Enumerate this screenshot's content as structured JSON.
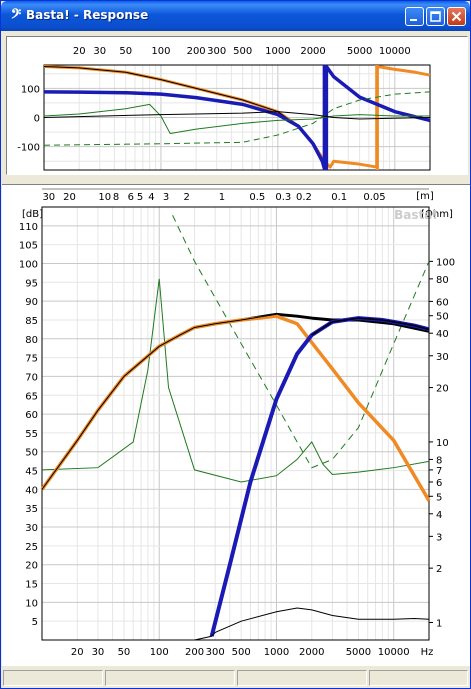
{
  "window": {
    "title": "Basta! - Response",
    "icon": "bass-clef-icon",
    "controls": [
      "minimize",
      "maximize",
      "close"
    ]
  },
  "phase_panel": {
    "freq_ticks": [
      "20",
      "30",
      "50",
      "100",
      "200",
      "300",
      "500",
      "1000",
      "2000",
      "5000",
      "10000"
    ],
    "y_ticks": [
      "100",
      "0",
      "-100"
    ]
  },
  "response_panel": {
    "top_axis_ticks": [
      "30",
      "20",
      "10",
      "8",
      "6",
      "5",
      "4",
      "3",
      "2",
      "1",
      "0.5",
      "0.3",
      "0.2",
      "0.1",
      "0.05"
    ],
    "top_axis_unit": "[m]",
    "left_unit": "[dB]",
    "right_unit": "[Ohm]",
    "watermark": "Basta!",
    "db_ticks": [
      "110",
      "105",
      "100",
      "95",
      "90",
      "85",
      "80",
      "75",
      "70",
      "65",
      "60",
      "55",
      "50",
      "45",
      "40",
      "35",
      "30",
      "25",
      "20",
      "15",
      "10",
      "5"
    ],
    "ohm_ticks": [
      "100",
      "80",
      "60",
      "50",
      "40",
      "30",
      "20",
      "10",
      "8",
      "7",
      "6",
      "5",
      "4",
      "3",
      "2",
      "1"
    ],
    "freq_ticks": [
      "20",
      "30",
      "50",
      "100",
      "200",
      "300",
      "500",
      "1000",
      "2000",
      "5000",
      "10000"
    ],
    "freq_unit": "Hz"
  },
  "colors": {
    "sum": "#000000",
    "woofer": "#F08A24",
    "tweeter": "#1A1AB4",
    "impedance": "#1F7A1F",
    "grid_major": "#C8C8C8",
    "grid_minor": "#E6E6E6"
  },
  "chart_data": [
    {
      "type": "line",
      "x_scale": "log",
      "xlim": [
        10,
        20000
      ],
      "ylim": [
        -180,
        180
      ],
      "series": [
        {
          "color": "woofer",
          "x": [
            10,
            20,
            50,
            100,
            200,
            500,
            1000,
            1500,
            2000,
            2500,
            2800,
            3000,
            5000,
            7000,
            7100,
            10000,
            15000,
            20000
          ],
          "y": [
            175,
            170,
            155,
            130,
            100,
            60,
            20,
            -30,
            -90,
            -150,
            -170,
            -150,
            -160,
            -170,
            175,
            165,
            155,
            145
          ]
        },
        {
          "color": "sum",
          "x": [
            10,
            20,
            50,
            100,
            200,
            500,
            1000,
            1500,
            2000,
            2400,
            2500,
            2600,
            3000,
            5000,
            10000,
            20000
          ],
          "y": [
            175,
            170,
            155,
            130,
            100,
            60,
            20,
            -30,
            -90,
            -150,
            -175,
            175,
            140,
            70,
            20,
            -10
          ]
        },
        {
          "color": "tweeter",
          "x": [
            10,
            20,
            50,
            100,
            200,
            500,
            1000,
            1500,
            2000,
            2400,
            2500,
            2600,
            3000,
            5000,
            10000,
            20000
          ],
          "y": [
            88,
            87,
            85,
            80,
            68,
            45,
            10,
            -30,
            -90,
            -150,
            -175,
            175,
            140,
            70,
            20,
            -10
          ]
        },
        {
          "color": "impedance",
          "x": [
            10,
            20,
            50,
            80,
            100,
            120,
            200,
            500,
            1000,
            2000,
            3000,
            5000,
            10000,
            20000
          ],
          "y": [
            5,
            12,
            30,
            45,
            5,
            -55,
            -40,
            -20,
            -10,
            -5,
            5,
            10,
            5,
            5
          ]
        },
        {
          "color": "impedance",
          "x": [
            10,
            100,
            500,
            1000,
            2000,
            3000,
            5000,
            10000,
            20000
          ],
          "y": [
            -95,
            -90,
            -85,
            -60,
            -20,
            30,
            60,
            80,
            88
          ]
        },
        {
          "color": "sum",
          "x": [
            10,
            100,
            500,
            1000,
            2000,
            3000,
            5000,
            20000
          ],
          "y": [
            0,
            10,
            15,
            20,
            10,
            0,
            -5,
            0
          ]
        }
      ]
    },
    {
      "type": "line",
      "x_scale": "log",
      "xlim": [
        10,
        20000
      ],
      "ylim": [
        0,
        115
      ],
      "y2_scale": "log",
      "y2lim": [
        0.8,
        200
      ],
      "series": [
        {
          "color": "sum",
          "x": [
            10,
            20,
            30,
            50,
            100,
            150,
            200,
            300,
            500,
            1000,
            1500,
            2000,
            3000,
            5000,
            10000,
            20000
          ],
          "y": [
            40,
            53,
            61,
            70,
            78,
            81,
            83,
            84,
            85,
            86.5,
            86,
            85.5,
            85,
            85,
            84,
            82
          ]
        },
        {
          "color": "woofer",
          "x": [
            10,
            20,
            30,
            50,
            100,
            150,
            200,
            300,
            500,
            1000,
            1500,
            2000,
            3000,
            5000,
            10000,
            20000
          ],
          "y": [
            40,
            53,
            61,
            70,
            78,
            81,
            83,
            84,
            85,
            86,
            84,
            79,
            72,
            63,
            53,
            37
          ]
        },
        {
          "color": "tweeter",
          "x": [
            280,
            400,
            600,
            1000,
            1500,
            2000,
            3000,
            5000,
            8000,
            10000,
            15000,
            20000
          ],
          "y": [
            1,
            20,
            42,
            64,
            76,
            81,
            84.5,
            85.5,
            85,
            84.5,
            83.5,
            82.5
          ]
        },
        {
          "color": "sum",
          "x": [
            10,
            100,
            200,
            280,
            300,
            500,
            1000,
            1500,
            2000,
            3000,
            5000,
            10000,
            15000,
            20000
          ],
          "y": [
            0,
            0,
            0,
            1,
            2,
            5,
            7.5,
            8.5,
            8,
            6.5,
            5.5,
            5.5,
            5.7,
            5.5
          ]
        }
      ],
      "impedance_series": [
        {
          "color": "impedance",
          "x": [
            10,
            30,
            60,
            80,
            100,
            120,
            200,
            500,
            1000,
            1500,
            2000,
            2500,
            3000,
            5000,
            10000,
            20000
          ],
          "y": [
            7,
            7.2,
            10,
            25,
            80,
            20,
            7,
            6,
            6.5,
            8,
            10,
            7.5,
            6.6,
            6.8,
            7.2,
            7.8
          ]
        },
        {
          "color": "impedance",
          "x": [
            130,
            200,
            500,
            1000,
            1500,
            2000,
            3000,
            5000,
            10000,
            20000
          ],
          "y": [
            180,
            100,
            35,
            16,
            10,
            7.2,
            8,
            12,
            35,
            100
          ]
        }
      ]
    }
  ]
}
